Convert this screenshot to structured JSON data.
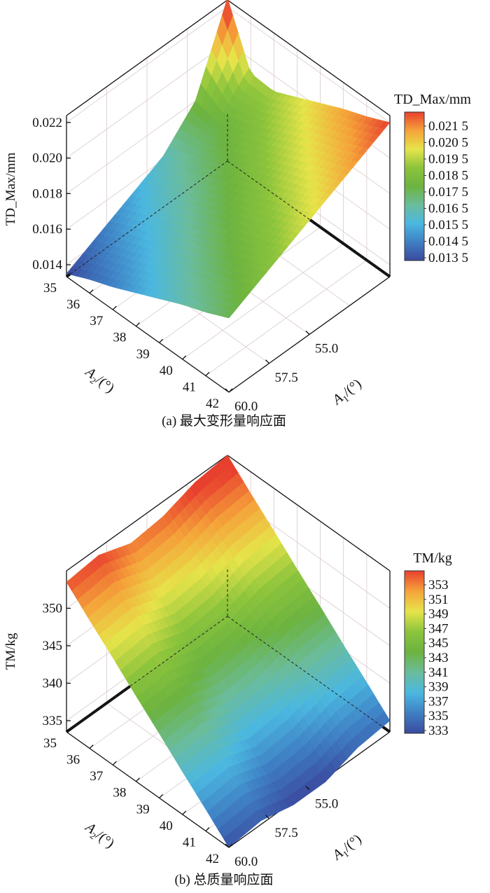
{
  "chart_data": [
    {
      "type": "surface",
      "caption": "(a) 最大变形量响应面",
      "zlabel": "TD_Max/mm",
      "x1label": {
        "sym": "A",
        "sub": "1",
        "unit": "/(°)"
      },
      "x2label": {
        "sym": "A",
        "sub": "2",
        "unit": "/(°)"
      },
      "a1_range": [
        50,
        60
      ],
      "a2_range": [
        35,
        42
      ],
      "z_range": [
        0.01333,
        0.02239
      ],
      "a1_ticks": [
        "55.0",
        "57.5",
        "60.0"
      ],
      "a2_ticks": [
        "35",
        "36",
        "37",
        "38",
        "39",
        "40",
        "41",
        "42"
      ],
      "z_ticks": [
        "0.014",
        "0.016",
        "0.018",
        "0.020",
        "0.022"
      ],
      "colorbar": {
        "title": "TD_Max/mm",
        "range": [
          0.0135,
          0.022
        ],
        "labels": [
          "0.021 5",
          "0.020 5",
          "0.019 5",
          "0.018 5",
          "0.017 5",
          "0.016 5",
          "0.015 5",
          "0.014 5",
          "0.013 5"
        ]
      },
      "grid": {
        "a1": [
          50,
          52,
          54,
          56,
          58,
          60
        ],
        "a2": [
          35,
          36,
          37,
          38,
          39,
          40,
          41,
          42
        ],
        "z": [
          [
            0.0225,
            0.018,
            0.0162,
            0.0153,
            0.0144,
            0.0135
          ],
          [
            0.0192,
            0.0177,
            0.0168,
            0.0159,
            0.015,
            0.0141
          ],
          [
            0.0191,
            0.0182,
            0.0173,
            0.0164,
            0.0155,
            0.0146
          ],
          [
            0.0197,
            0.0188,
            0.0179,
            0.017,
            0.0161,
            0.0152
          ],
          [
            0.0203,
            0.0194,
            0.0185,
            0.0176,
            0.0167,
            0.0158
          ],
          [
            0.0209,
            0.02,
            0.0191,
            0.0182,
            0.0173,
            0.0164
          ],
          [
            0.0214,
            0.0205,
            0.0196,
            0.0187,
            0.0178,
            0.0169
          ],
          [
            0.022,
            0.0211,
            0.0202,
            0.0193,
            0.0184,
            0.0175
          ]
        ]
      }
    },
    {
      "type": "surface",
      "caption": "(b) 总质量响应面",
      "zlabel": "TM/kg",
      "x1label": {
        "sym": "A",
        "sub": "1",
        "unit": "/(°)"
      },
      "x2label": {
        "sym": "A",
        "sub": "2",
        "unit": "/(°)"
      },
      "a1_range": [
        50,
        60
      ],
      "a2_range": [
        35,
        42
      ],
      "z_range": [
        333.5,
        355
      ],
      "a1_ticks": [
        "55.0",
        "57.5",
        "60.0"
      ],
      "a2_ticks": [
        "35",
        "36",
        "37",
        "38",
        "39",
        "40",
        "41",
        "42"
      ],
      "z_ticks": [
        "335",
        "340",
        "345",
        "350"
      ],
      "colorbar": {
        "title": "TM/kg",
        "range": [
          333,
          354
        ],
        "labels": [
          "353",
          "351",
          "349",
          "347",
          "345",
          "343",
          "341",
          "339",
          "337",
          "335",
          "333"
        ]
      },
      "grid": {
        "a1": [
          50,
          52,
          54,
          56,
          58,
          60
        ],
        "a2": [
          35,
          36,
          37,
          38,
          39,
          40,
          41,
          42
        ],
        "z": [
          [
            355.0,
            354.5,
            353.0,
            352.5,
            354.0,
            353.5
          ],
          [
            352.1,
            351.6,
            350.1,
            349.6,
            351.1,
            350.6
          ],
          [
            349.3,
            348.8,
            347.3,
            346.8,
            348.3,
            347.8
          ],
          [
            346.4,
            345.9,
            344.4,
            343.9,
            345.4,
            344.9
          ],
          [
            343.6,
            343.1,
            341.6,
            341.1,
            342.6,
            342.1
          ],
          [
            340.7,
            340.2,
            338.7,
            338.2,
            339.7,
            339.2
          ],
          [
            337.9,
            337.4,
            335.9,
            335.4,
            336.9,
            336.4
          ],
          [
            335.0,
            334.5,
            333.0,
            333.0,
            334.0,
            333.5
          ]
        ]
      }
    }
  ],
  "colors": {
    "colormap": [
      "#3a4a9e",
      "#3f7fc4",
      "#4bb8e0",
      "#6bbc9c",
      "#6cb340",
      "#8cc43c",
      "#e6e44a",
      "#f5a33a",
      "#e8402e"
    ],
    "grid": "#d9c9c9",
    "axis": "#111111"
  }
}
